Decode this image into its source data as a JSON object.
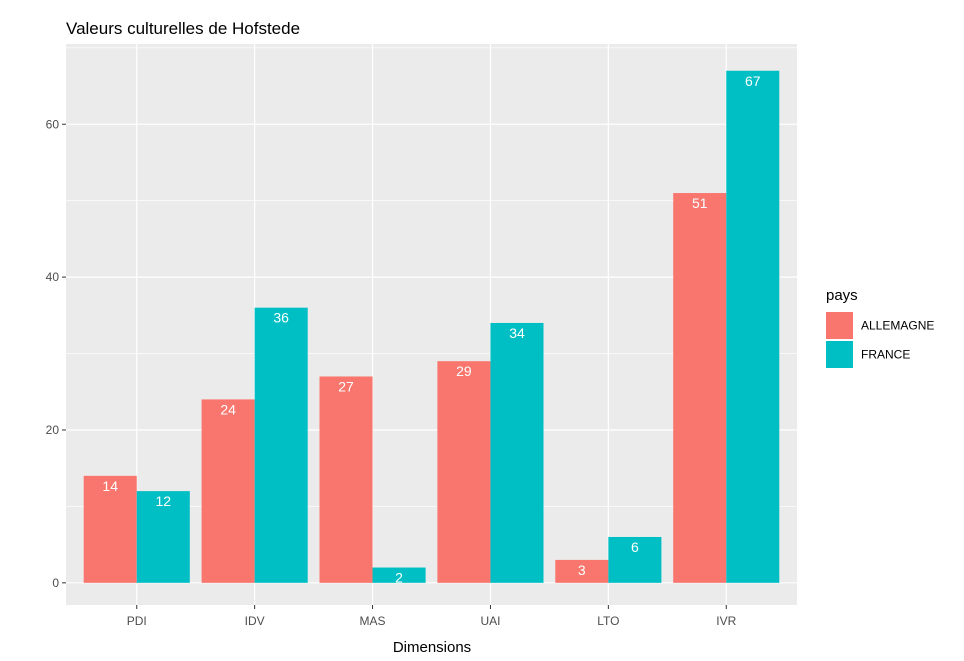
{
  "chart_data": {
    "type": "bar",
    "title": "Valeurs culturelles de Hofstede",
    "xlabel": "Dimensions",
    "ylabel": "",
    "categories": [
      "PDI",
      "IDV",
      "MAS",
      "UAI",
      "LTO",
      "IVR"
    ],
    "series": [
      {
        "name": "ALLEMAGNE",
        "color": "#f8766d",
        "values": [
          14,
          24,
          27,
          29,
          3,
          51
        ]
      },
      {
        "name": "FRANCE",
        "color": "#00bfc4",
        "values": [
          12,
          36,
          2,
          34,
          6,
          67
        ]
      }
    ],
    "ylim": [
      0,
      70
    ],
    "yticks": [
      0,
      20,
      40,
      60
    ],
    "grid": true,
    "legend_title": "pays",
    "legend_position": "right",
    "panel_background": "#ebebeb",
    "grid_color": "#ffffff",
    "data_label_color": "#ffffff"
  }
}
